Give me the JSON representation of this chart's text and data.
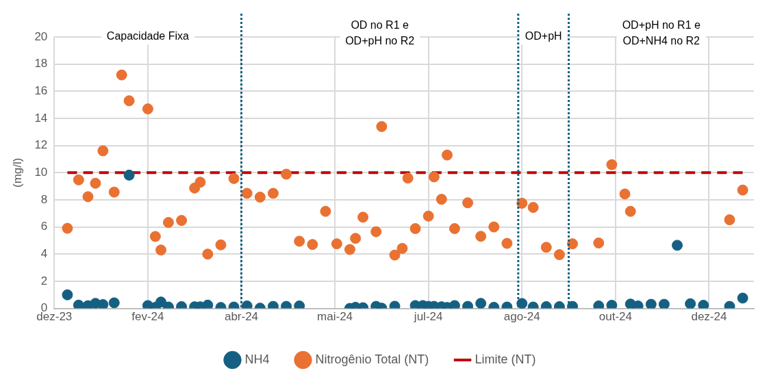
{
  "chart_data": {
    "type": "scatter",
    "ylabel": "(mg/l)",
    "xlim": [
      "2023-12-23",
      "2024-12-31"
    ],
    "ylim": [
      0,
      20
    ],
    "yticks": [
      0,
      2,
      4,
      6,
      8,
      10,
      12,
      14,
      16,
      18,
      20
    ],
    "xticks": [
      {
        "value": "2023-12-23",
        "label": "dez-23"
      },
      {
        "value": "2024-02-11",
        "label": "fev-24"
      },
      {
        "value": "2024-04-01",
        "label": "abr-24"
      },
      {
        "value": "2024-05-21",
        "label": "mai-24"
      },
      {
        "value": "2024-07-10",
        "label": "jul-24"
      },
      {
        "value": "2024-08-29",
        "label": "ago-24"
      },
      {
        "value": "2024-10-18",
        "label": "out-24"
      },
      {
        "value": "2024-12-07",
        "label": "dez-24"
      }
    ],
    "grid": true,
    "legend": "bottom",
    "marker": "circle",
    "series": [
      {
        "name": "NH4",
        "color": "#156082",
        "x": [
          "2023-12-30",
          "2024-01-05",
          "2024-01-10",
          "2024-01-14",
          "2024-01-18",
          "2024-01-24",
          "2024-02-01",
          "2024-02-11",
          "2024-02-15",
          "2024-02-18",
          "2024-02-22",
          "2024-02-29",
          "2024-03-07",
          "2024-03-10",
          "2024-03-14",
          "2024-03-21",
          "2024-03-28",
          "2024-04-04",
          "2024-04-11",
          "2024-04-18",
          "2024-04-25",
          "2024-05-02",
          "2024-05-29",
          "2024-06-01",
          "2024-06-05",
          "2024-06-12",
          "2024-06-15",
          "2024-06-22",
          "2024-07-03",
          "2024-07-07",
          "2024-07-10",
          "2024-07-13",
          "2024-07-17",
          "2024-07-20",
          "2024-07-24",
          "2024-07-31",
          "2024-08-07",
          "2024-08-14",
          "2024-08-21",
          "2024-08-29",
          "2024-09-04",
          "2024-09-11",
          "2024-09-18",
          "2024-09-25",
          "2024-10-09",
          "2024-10-16",
          "2024-10-26",
          "2024-10-30",
          "2024-11-06",
          "2024-11-13",
          "2024-11-20",
          "2024-11-27",
          "2024-12-04",
          "2024-12-18",
          "2024-12-25"
        ],
        "values": [
          1.0,
          0.24,
          0.2,
          0.37,
          0.28,
          0.41,
          9.82,
          0.21,
          0.08,
          0.47,
          0.1,
          0.13,
          0.12,
          0.12,
          0.24,
          0.07,
          0.1,
          0.18,
          0.02,
          0.15,
          0.15,
          0.18,
          0.0,
          0.08,
          0.05,
          0.15,
          0.02,
          0.16,
          0.21,
          0.21,
          0.15,
          0.15,
          0.12,
          0.07,
          0.21,
          0.15,
          0.37,
          0.08,
          0.1,
          0.36,
          0.1,
          0.13,
          0.13,
          0.15,
          0.18,
          0.23,
          0.32,
          0.18,
          0.3,
          0.3,
          4.65,
          0.34,
          0.23,
          0.15,
          0.76
        ]
      },
      {
        "name": "Nitrogênio Total (NT)",
        "color": "#e97132",
        "x": [
          "2023-12-30",
          "2024-01-05",
          "2024-01-10",
          "2024-01-14",
          "2024-01-18",
          "2024-01-24",
          "2024-01-28",
          "2024-02-01",
          "2024-02-11",
          "2024-02-15",
          "2024-02-18",
          "2024-02-22",
          "2024-02-29",
          "2024-03-07",
          "2024-03-10",
          "2024-03-14",
          "2024-03-21",
          "2024-03-28",
          "2024-04-04",
          "2024-04-11",
          "2024-04-18",
          "2024-04-25",
          "2024-05-02",
          "2024-05-09",
          "2024-05-16",
          "2024-05-22",
          "2024-05-29",
          "2024-06-01",
          "2024-06-05",
          "2024-06-12",
          "2024-06-15",
          "2024-06-22",
          "2024-06-26",
          "2024-06-29",
          "2024-07-03",
          "2024-07-10",
          "2024-07-13",
          "2024-07-17",
          "2024-07-20",
          "2024-07-24",
          "2024-07-31",
          "2024-08-07",
          "2024-08-14",
          "2024-08-21",
          "2024-08-29",
          "2024-09-04",
          "2024-09-11",
          "2024-09-18",
          "2024-09-25",
          "2024-10-09",
          "2024-10-16",
          "2024-10-23",
          "2024-10-26",
          "2024-12-18",
          "2024-12-25"
        ],
        "values": [
          5.9,
          9.47,
          8.23,
          9.22,
          11.61,
          8.57,
          17.2,
          15.3,
          14.7,
          5.3,
          4.3,
          6.33,
          6.48,
          8.87,
          9.3,
          4.0,
          4.68,
          9.57,
          8.48,
          8.2,
          8.48,
          9.89,
          4.95,
          4.71,
          7.15,
          4.76,
          4.34,
          5.16,
          6.72,
          5.65,
          13.4,
          3.93,
          4.42,
          9.6,
          5.88,
          6.8,
          9.69,
          8.04,
          11.3,
          5.88,
          7.78,
          5.31,
          6.0,
          4.79,
          7.75,
          7.44,
          4.5,
          3.96,
          4.76,
          4.82,
          10.59,
          8.43,
          7.15,
          6.53,
          8.72
        ]
      },
      {
        "name": "Limite (NT)",
        "type": "line",
        "color": "#c00000",
        "line_style": "dashed",
        "marker": "none",
        "x": [
          "2023-12-30",
          "2024-12-25"
        ],
        "values": [
          10,
          10
        ]
      }
    ],
    "ref_lines": [
      {
        "axis": "x",
        "value": "2024-04-01",
        "color": "#156082",
        "line_style": "dotted"
      },
      {
        "axis": "x",
        "value": "2024-08-27",
        "color": "#156082",
        "line_style": "dotted"
      },
      {
        "axis": "x",
        "value": "2024-09-23",
        "color": "#156082",
        "line_style": "dotted"
      }
    ],
    "annotations": [
      "Capacidade Fixa",
      "OD no R1 e\nOD+pH no R2",
      "OD+pH",
      "OD+pH no R1 e\nOD+NH4 no R2"
    ]
  }
}
